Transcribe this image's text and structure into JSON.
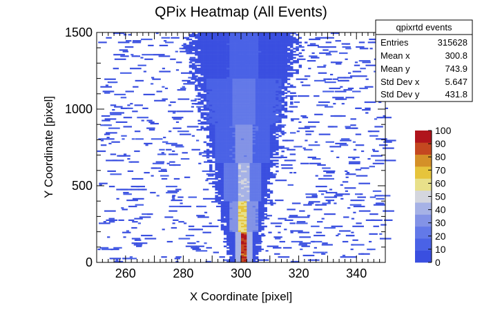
{
  "chart_data": {
    "type": "heatmap",
    "title": "QPix Heatmap (All Events)",
    "xlabel": "X Coordinate [pixel]",
    "ylabel": "Y Coordinate [pixel]",
    "xlim": [
      250,
      350
    ],
    "ylim": [
      0,
      1500
    ],
    "x_ticks": [
      "260",
      "280",
      "300",
      "320",
      "340"
    ],
    "x_tick_values": [
      260,
      280,
      300,
      320,
      340
    ],
    "y_ticks": [
      "0",
      "500",
      "1000",
      "1500"
    ],
    "y_tick_values": [
      0,
      500,
      1000,
      1500
    ],
    "zlim": [
      0,
      100
    ],
    "z_ticks": [
      "0",
      "10",
      "20",
      "30",
      "40",
      "50",
      "60",
      "70",
      "80",
      "90",
      "100"
    ],
    "z_tick_values": [
      0,
      10,
      20,
      30,
      40,
      50,
      60,
      70,
      80,
      90,
      100
    ],
    "palette": [
      "#3a4fe0",
      "#4a62e6",
      "#6379e8",
      "#8393e6",
      "#a6b2e6",
      "#d4d6de",
      "#e8e08a",
      "#e6c43c",
      "#d49028",
      "#c44820",
      "#b0141c"
    ],
    "bands": [
      {
        "y_from": 0,
        "y_to": 200,
        "x_center": 300.8,
        "core_width": 2,
        "core_value": 95,
        "halo_value": 8
      },
      {
        "y_from": 200,
        "y_to": 400,
        "x_center": 300.8,
        "core_width": 3,
        "core_value": 65,
        "halo_value": 10
      },
      {
        "y_from": 400,
        "y_to": 650,
        "x_center": 300.8,
        "core_width": 4,
        "core_value": 45,
        "halo_value": 9
      },
      {
        "y_from": 650,
        "y_to": 900,
        "x_center": 300.8,
        "core_width": 6,
        "core_value": 32,
        "halo_value": 7
      },
      {
        "y_from": 900,
        "y_to": 1200,
        "x_center": 300.8,
        "core_width": 8,
        "core_value": 22,
        "halo_value": 5
      },
      {
        "y_from": 1200,
        "y_to": 1500,
        "x_center": 300.8,
        "core_width": 10,
        "core_value": 14,
        "halo_value": 4
      }
    ],
    "stats": {
      "name": "qpixrtd events",
      "rows": [
        {
          "label": "Entries",
          "value": "315628"
        },
        {
          "label": "Mean x",
          "value": "300.8"
        },
        {
          "label": "Mean y",
          "value": "743.9"
        },
        {
          "label": "Std Dev x",
          "value": "5.647"
        },
        {
          "label": "Std Dev y",
          "value": "431.8"
        }
      ]
    }
  }
}
